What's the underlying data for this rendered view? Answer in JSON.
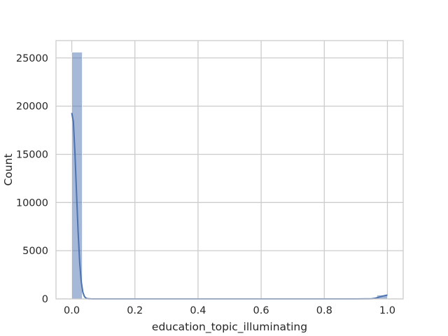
{
  "chart_data": {
    "type": "histogram",
    "xlabel": "education_topic_illuminating",
    "ylabel": "Count",
    "xlim": [
      -0.05,
      1.05
    ],
    "ylim": [
      0,
      26800
    ],
    "xticks": [
      0.0,
      0.2,
      0.4,
      0.6,
      0.8,
      1.0
    ],
    "xtick_labels": [
      "0.0",
      "0.2",
      "0.4",
      "0.6",
      "0.8",
      "1.0"
    ],
    "yticks": [
      0,
      5000,
      10000,
      15000,
      20000,
      25000
    ],
    "ytick_labels": [
      "0",
      "5000",
      "10000",
      "15000",
      "20000",
      "25000"
    ],
    "grid": true,
    "bin_width": 0.0333,
    "bins": [
      {
        "x0": 0.0,
        "x1": 0.0333,
        "count": 25600
      },
      {
        "x0": 0.9667,
        "x1": 1.0,
        "count": 400
      }
    ],
    "kde": {
      "x": [
        0.0,
        0.005,
        0.01,
        0.015,
        0.02,
        0.025,
        0.03,
        0.035,
        0.04,
        0.045,
        0.05,
        0.06,
        0.07,
        0.08,
        0.1,
        0.2,
        0.4,
        0.6,
        0.8,
        0.9,
        0.95,
        0.96,
        0.97,
        0.98,
        0.99,
        1.0
      ],
      "y": [
        19300,
        18400,
        15200,
        11000,
        7000,
        3800,
        1800,
        700,
        250,
        80,
        25,
        5,
        0,
        0,
        0,
        0,
        0,
        0,
        0,
        0,
        15,
        60,
        150,
        250,
        330,
        400
      ]
    },
    "bar_color": "#4c72b0",
    "bar_opacity": 0.5,
    "line_color": "#4c72b0"
  }
}
